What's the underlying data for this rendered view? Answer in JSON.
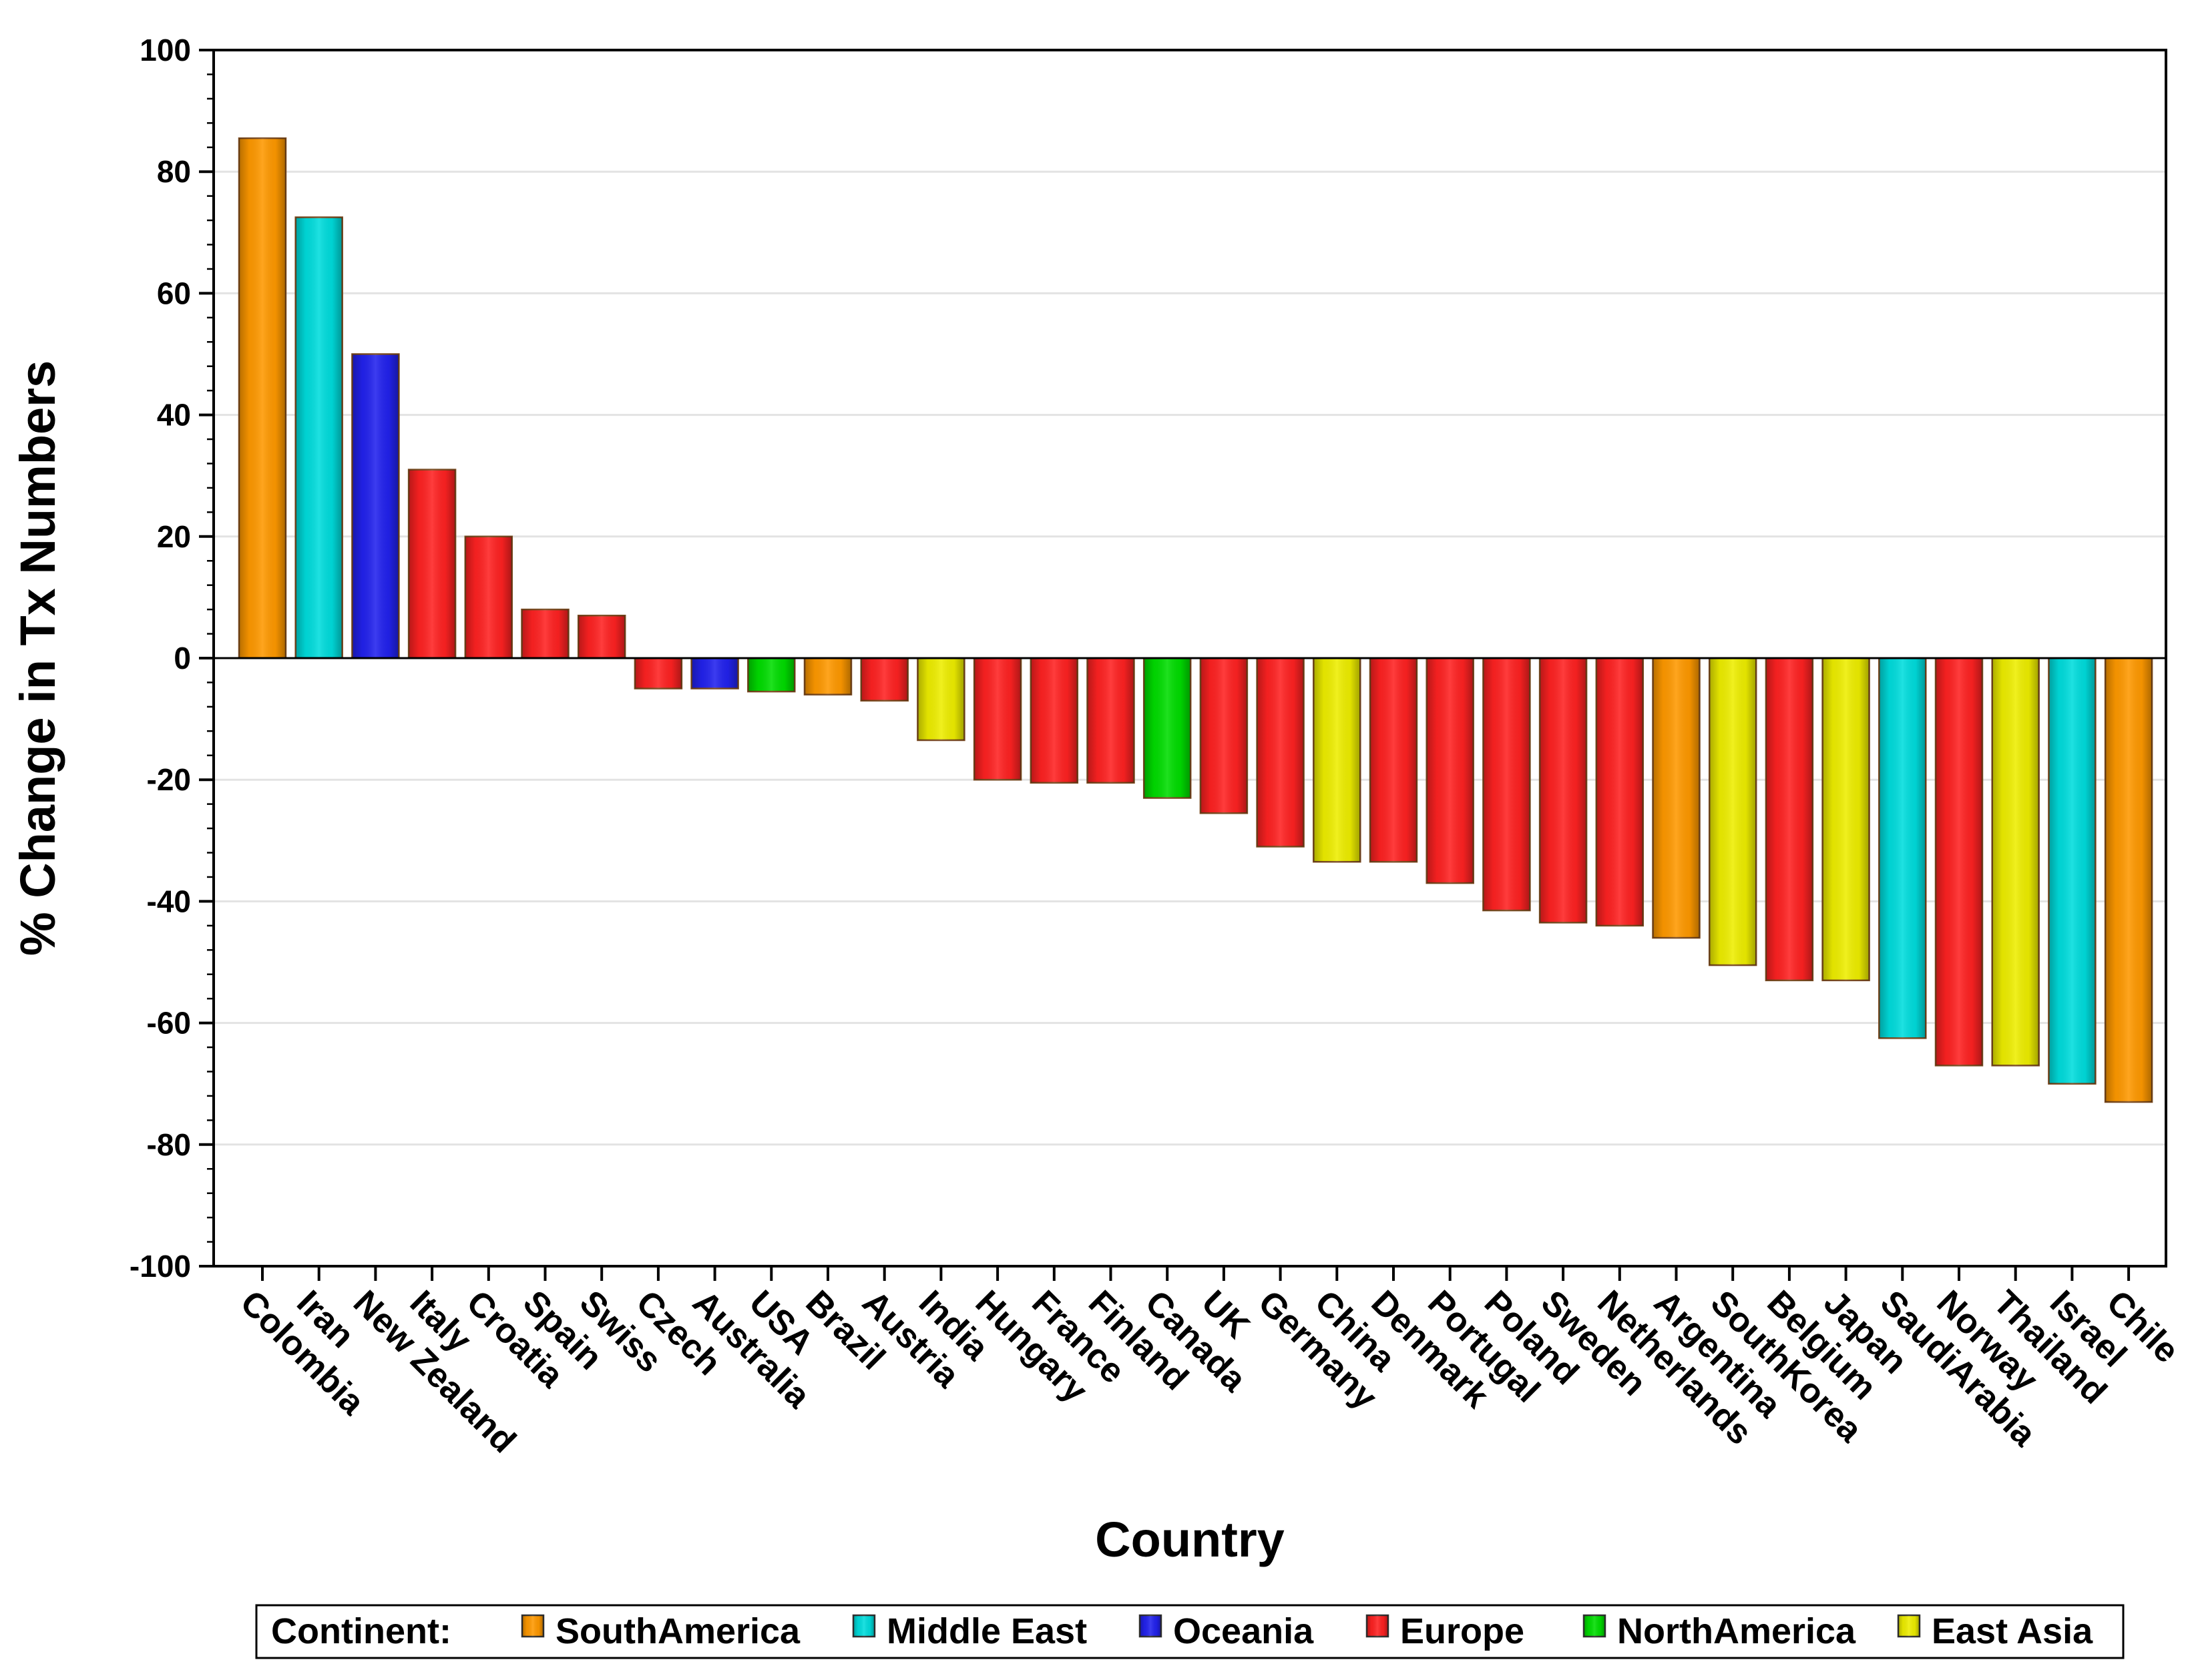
{
  "chart_data": {
    "type": "bar",
    "title": "",
    "xlabel": "Country",
    "ylabel": "% Change in Tx Numbers",
    "ylim": [
      -100,
      100
    ],
    "yticks": [
      100,
      80,
      60,
      40,
      20,
      0,
      -20,
      -40,
      -60,
      -80,
      -100
    ],
    "grid": true,
    "legend": {
      "title": "Continent:",
      "position": "bottom",
      "entries": [
        {
          "name": "SouthAmerica",
          "color": "#FF9900"
        },
        {
          "name": "Middle East",
          "color": "#00DDDD"
        },
        {
          "name": "Oceania",
          "color": "#2222EE"
        },
        {
          "name": "Europe",
          "color": "#FF2222"
        },
        {
          "name": "NorthAmerica",
          "color": "#00DD00"
        },
        {
          "name": "East Asia",
          "color": "#EEEE00"
        }
      ]
    },
    "categories": [
      "Colombia",
      "Iran",
      "New Zealand",
      "Italy",
      "Croatia",
      "Spain",
      "Swiss",
      "Czech",
      "Australia",
      "USA",
      "Brazil",
      "Austria",
      "India",
      "Hungary",
      "France",
      "Finland",
      "Canada",
      "UK",
      "Germany",
      "China",
      "Denmark",
      "Portugal",
      "Poland",
      "Sweden",
      "Netherlands",
      "Argentina",
      "SouthKorea",
      "Belgium",
      "Japan",
      "SaudiArabia",
      "Norway",
      "Thailand",
      "Israel",
      "Chile"
    ],
    "values": [
      85.5,
      72.5,
      50,
      31,
      20,
      8,
      7,
      -5,
      -5,
      -5.5,
      -6,
      -7,
      -13.5,
      -20,
      -20.5,
      -20.5,
      -23,
      -25.5,
      -31,
      -33.5,
      -33.5,
      -37,
      -41.5,
      -43.5,
      -44,
      -46,
      -50.5,
      -53,
      -53,
      -62.5,
      -67,
      -67,
      -70,
      -73
    ],
    "groups": [
      "SouthAmerica",
      "Middle East",
      "Oceania",
      "Europe",
      "Europe",
      "Europe",
      "Europe",
      "Europe",
      "Oceania",
      "NorthAmerica",
      "SouthAmerica",
      "Europe",
      "East Asia",
      "Europe",
      "Europe",
      "Europe",
      "NorthAmerica",
      "Europe",
      "Europe",
      "East Asia",
      "Europe",
      "Europe",
      "Europe",
      "Europe",
      "Europe",
      "SouthAmerica",
      "East Asia",
      "Europe",
      "East Asia",
      "Middle East",
      "Europe",
      "East Asia",
      "Middle East",
      "SouthAmerica"
    ]
  }
}
